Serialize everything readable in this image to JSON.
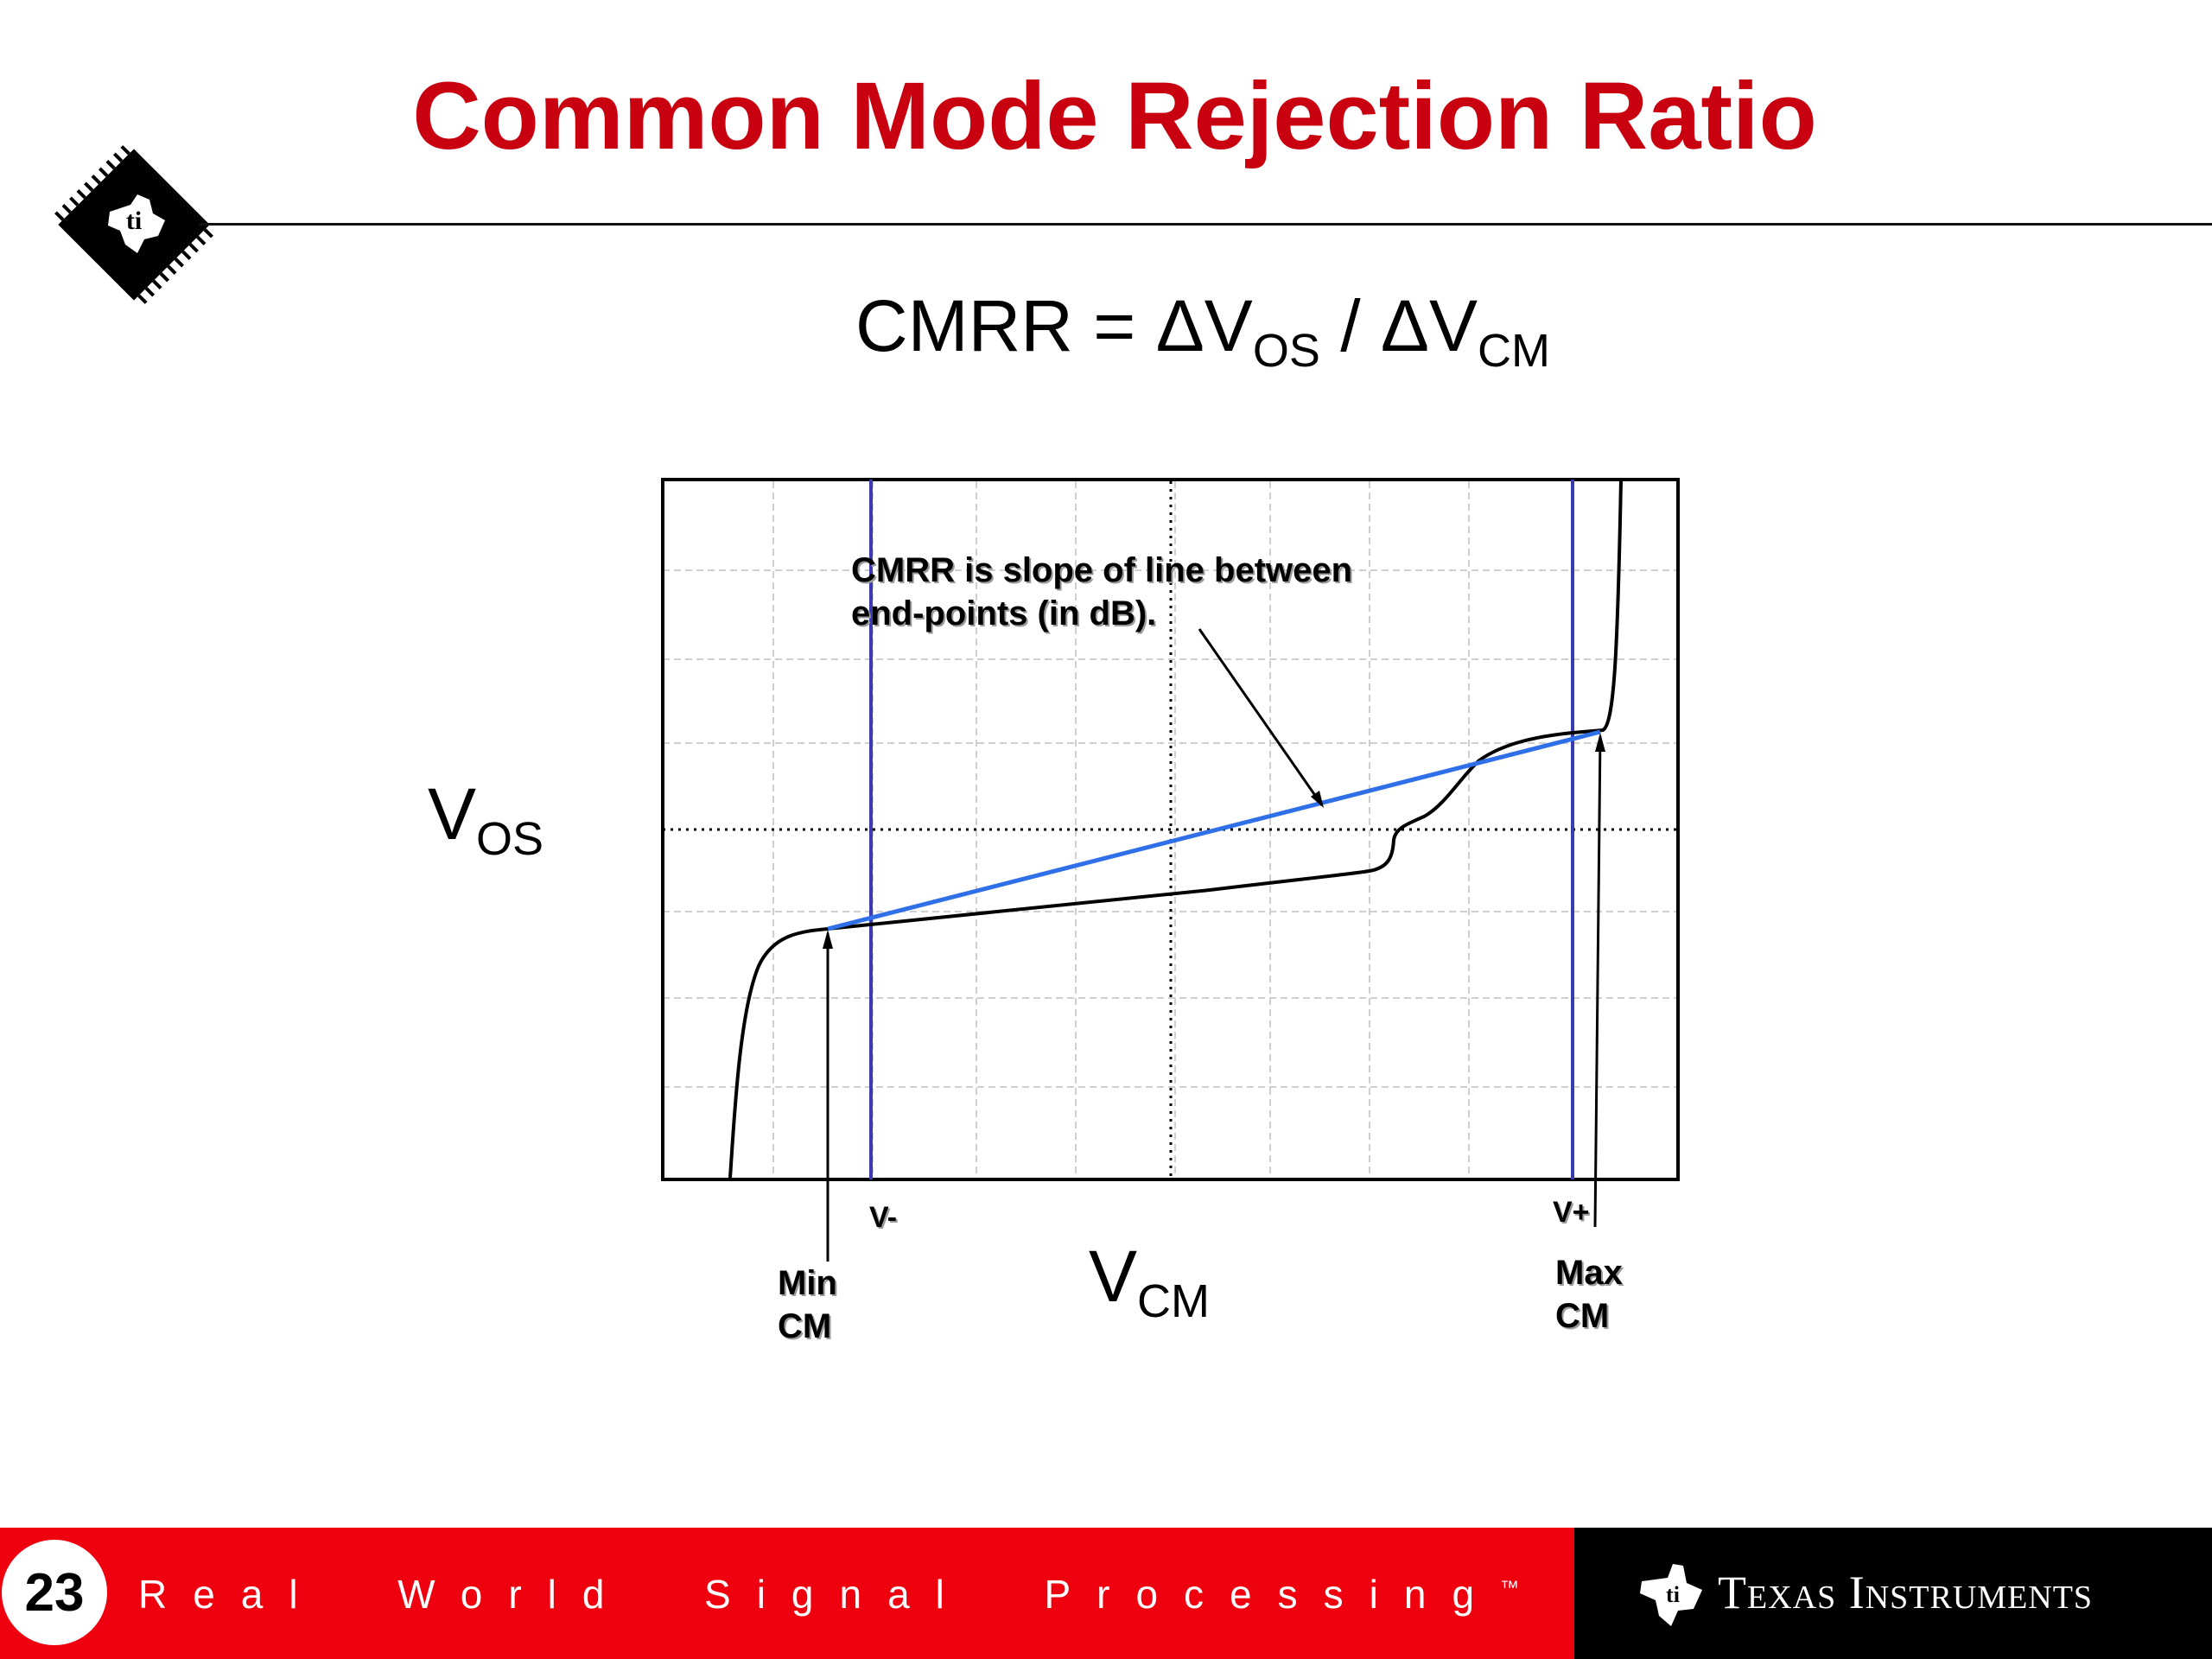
{
  "header": {
    "title": "Common Mode Rejection Ratio"
  },
  "formula": {
    "lhs": "CMRR = ΔV",
    "sub1": "OS",
    "mid": " / ΔV",
    "sub2": "CM"
  },
  "diagram": {
    "y_axis": {
      "main": "V",
      "sub": "OS"
    },
    "x_axis": {
      "main": "V",
      "sub": "CM"
    },
    "annotation_line1": "CMRR is slope of line between",
    "annotation_line2": "end-points (in dB).",
    "v_minus_label": "V-",
    "v_plus_label": "V+",
    "min_cm_line1": "Min",
    "min_cm_line2": "CM",
    "max_cm_line1": "Max",
    "max_cm_line2": "CM",
    "colors": {
      "supply_lines": "#3b3bb0",
      "slope_line": "#2f6fe8",
      "curve": "#000000",
      "grid": "#c8c8c8"
    }
  },
  "footer": {
    "page_number": "23",
    "tagline_words": [
      "Real",
      "World",
      "Signal",
      "Processing"
    ],
    "trademark": "™",
    "company_word1": "Texas",
    "company_word2": "Instruments",
    "colors": {
      "red_band": "#ef000e",
      "black_band": "#000000"
    }
  }
}
